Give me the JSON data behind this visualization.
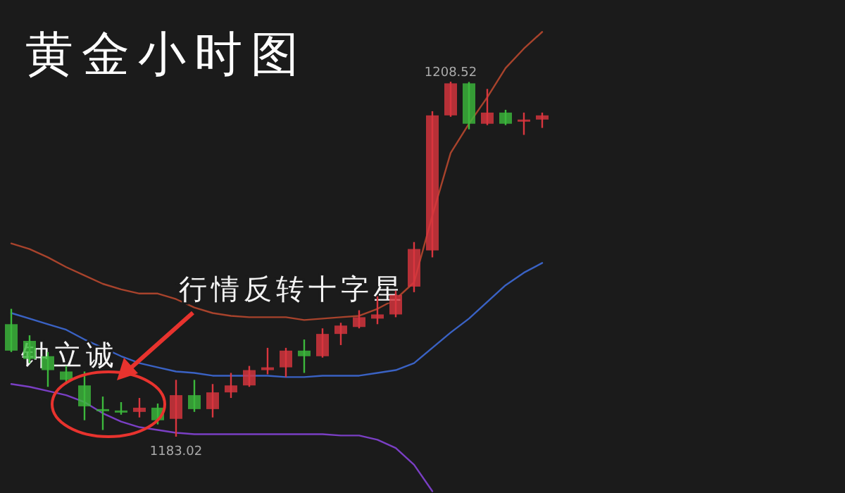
{
  "chart_data": {
    "type": "candlestick",
    "title": "黄金小时图",
    "categories": [
      null,
      null,
      null,
      null,
      null,
      null,
      null,
      null,
      null,
      null,
      null,
      null,
      null,
      null,
      null,
      null,
      null,
      null,
      null,
      null,
      null,
      null,
      null,
      null,
      null,
      null,
      null,
      null,
      null,
      null
    ],
    "ohlc": [
      [
        1191.1,
        1192.2,
        1189.1,
        1189.2
      ],
      [
        1189.9,
        1190.3,
        1188.3,
        1188.6
      ],
      [
        1188.8,
        1189.1,
        1186.6,
        1187.8
      ],
      [
        1187.7,
        1188.1,
        1186.8,
        1187.1
      ],
      [
        1186.7,
        1187.7,
        1184.2,
        1185.2
      ],
      [
        1185.0,
        1185.9,
        1183.5,
        1184.9
      ],
      [
        1184.9,
        1185.5,
        1184.6,
        1184.8
      ],
      [
        1184.8,
        1185.8,
        1184.4,
        1185.1
      ],
      [
        1185.1,
        1185.4,
        1183.9,
        1184.2
      ],
      [
        1184.3,
        1187.1,
        1183.02,
        1186.0
      ],
      [
        1186.0,
        1187.1,
        1184.8,
        1185.0
      ],
      [
        1185.0,
        1186.8,
        1184.4,
        1186.2
      ],
      [
        1186.2,
        1187.6,
        1185.8,
        1186.7
      ],
      [
        1186.7,
        1188.1,
        1186.6,
        1187.8
      ],
      [
        1187.8,
        1189.4,
        1187.5,
        1188.0
      ],
      [
        1188.0,
        1189.4,
        1187.3,
        1189.2
      ],
      [
        1189.2,
        1190.0,
        1187.6,
        1188.8
      ],
      [
        1188.8,
        1190.8,
        1188.7,
        1190.4
      ],
      [
        1190.4,
        1191.2,
        1189.6,
        1191.0
      ],
      [
        1190.9,
        1192.1,
        1190.8,
        1191.6
      ],
      [
        1191.5,
        1193.1,
        1191.1,
        1191.8
      ],
      [
        1191.8,
        1193.5,
        1191.6,
        1193.2
      ],
      [
        1193.8,
        1197.0,
        1193.4,
        1196.5
      ],
      [
        1196.4,
        1206.4,
        1195.9,
        1206.1
      ],
      [
        1206.1,
        1208.52,
        1206.0,
        1208.4
      ],
      [
        1208.4,
        1208.5,
        1205.1,
        1205.5
      ],
      [
        1205.5,
        1208.0,
        1205.4,
        1206.3
      ],
      [
        1206.3,
        1206.5,
        1205.4,
        1205.5
      ],
      [
        1205.7,
        1206.3,
        1204.7,
        1205.8
      ],
      [
        1205.8,
        1206.3,
        1205.2,
        1206.1
      ]
    ],
    "colors": [
      "#3cb83c",
      "#3cb83c",
      "#3cb83c",
      "#3cb83c",
      "#3cb83c",
      "#3cb83c",
      "#3cb83c",
      "#d9363e",
      "#3cb83c",
      "#d9363e",
      "#3cb83c",
      "#d9363e",
      "#d9363e",
      "#d9363e",
      "#d9363e",
      "#d9363e",
      "#3cb83c",
      "#d9363e",
      "#d9363e",
      "#d9363e",
      "#d9363e",
      "#d9363e",
      "#d9363e",
      "#d9363e",
      "#d9363e",
      "#3cb83c",
      "#d9363e",
      "#3cb83c",
      "#d9363e",
      "#d9363e"
    ],
    "series": [
      {
        "type": "line",
        "color": "#a8432c",
        "values": [
          1196.9,
          1196.5,
          1195.9,
          1195.2,
          1194.6,
          1194.0,
          1193.6,
          1193.3,
          1193.3,
          1192.9,
          1192.3,
          1191.9,
          1191.7,
          1191.6,
          1191.6,
          1191.6,
          1191.4,
          1191.5,
          1191.6,
          1191.7,
          1192.2,
          1192.9,
          1194.1,
          1198.9,
          1203.4,
          1205.5,
          1207.4,
          1209.5,
          1210.9,
          1212.1
        ]
      },
      {
        "type": "line",
        "color": "#3a62c4",
        "values": [
          1191.9,
          1191.5,
          1191.1,
          1190.7,
          1190.0,
          1189.4,
          1188.8,
          1188.3,
          1188.0,
          1187.7,
          1187.6,
          1187.4,
          1187.4,
          1187.4,
          1187.4,
          1187.3,
          1187.3,
          1187.4,
          1187.4,
          1187.4,
          1187.6,
          1187.8,
          1188.3,
          1189.4,
          1190.5,
          1191.5,
          1192.7,
          1193.9,
          1194.8,
          1195.5
        ]
      },
      {
        "type": "line",
        "color": "#7a3fc4",
        "values": [
          1186.8,
          1186.6,
          1186.3,
          1186.0,
          1185.5,
          1184.7,
          1184.1,
          1183.7,
          1183.5,
          1183.3,
          1183.2,
          1183.2,
          1183.2,
          1183.2,
          1183.2,
          1183.2,
          1183.2,
          1183.2,
          1183.1,
          1183.1,
          1182.8,
          1182.2,
          1181.0,
          1179.1,
          null,
          null,
          null,
          null,
          null,
          null
        ]
      }
    ],
    "annotations": [
      "行情反转十字星",
      "钟立诚",
      {
        "text": "1208.52",
        "y": 1208.52
      },
      {
        "text": "1183.02",
        "y": 1183.02
      }
    ]
  }
}
